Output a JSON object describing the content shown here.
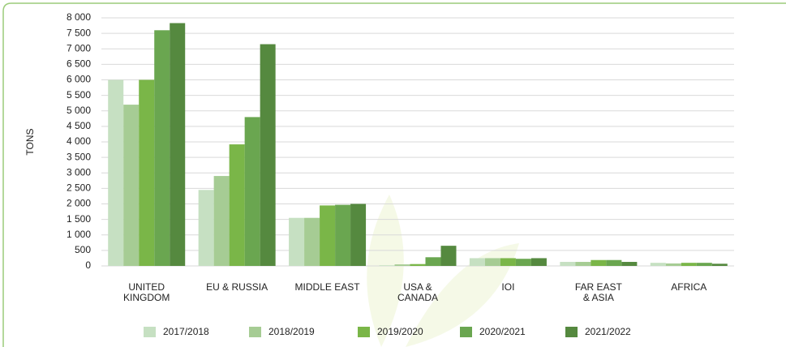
{
  "chart_data": {
    "type": "bar",
    "y_label": "TONS",
    "categories": [
      "UNITED\nKINGDOM",
      "EU & RUSSIA",
      "MIDDLE EAST",
      "USA &\nCANADA",
      "IOI",
      "FAR EAST\n& ASIA",
      "AFRICA"
    ],
    "series": [
      {
        "name": "2017/2018",
        "color": "#c6e0c2",
        "values": [
          6000,
          2450,
          1550,
          20,
          250,
          130,
          100
        ]
      },
      {
        "name": "2018/2019",
        "color": "#a6cc94",
        "values": [
          5200,
          2900,
          1550,
          50,
          250,
          130,
          80
        ]
      },
      {
        "name": "2019/2020",
        "color": "#7ab648",
        "values": [
          6000,
          3920,
          1950,
          60,
          250,
          190,
          100
        ]
      },
      {
        "name": "2020/2021",
        "color": "#6aa650",
        "values": [
          7600,
          4800,
          1970,
          280,
          230,
          190,
          100
        ]
      },
      {
        "name": "2021/2022",
        "color": "#55893f",
        "values": [
          7830,
          7150,
          2000,
          650,
          250,
          130,
          70
        ]
      }
    ],
    "ylim": [
      0,
      8000
    ],
    "yticks": [
      0,
      500,
      {
        "value": 1000,
        "label": "1 000"
      },
      {
        "value": 1500,
        "label": "1 500"
      },
      {
        "value": 2000,
        "label": "2 000"
      },
      {
        "value": 2500,
        "label": "2 500"
      },
      {
        "value": 3000,
        "label": "3 000"
      },
      {
        "value": 3500,
        "label": "3 500"
      },
      {
        "value": 4000,
        "label": "4 000"
      },
      {
        "value": 4500,
        "label": "4 500"
      },
      {
        "value": 5000,
        "label": "5 000"
      },
      {
        "value": 5500,
        "label": "5 500"
      },
      {
        "value": 6000,
        "label": "6 000"
      },
      {
        "value": 6500,
        "label": "6 500"
      },
      {
        "value": 7000,
        "label": "7 000"
      },
      {
        "value": 7500,
        "label": "7 500"
      },
      {
        "value": 8000,
        "label": "8 000"
      }
    ],
    "grid": true
  }
}
